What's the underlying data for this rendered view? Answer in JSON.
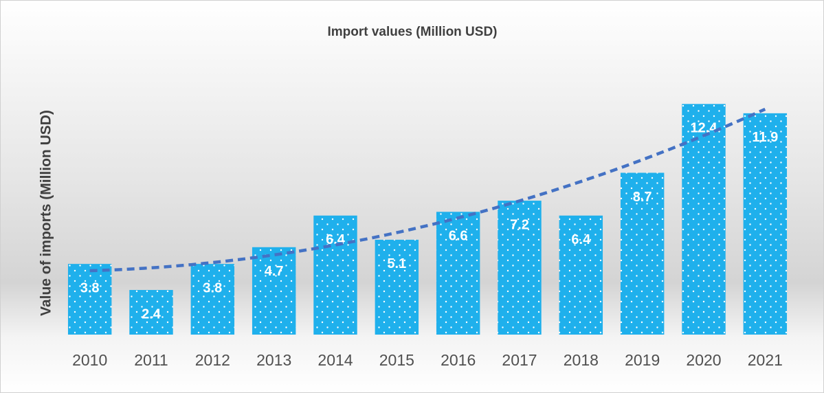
{
  "chart_data": {
    "type": "bar",
    "title": "Import values (Million USD)",
    "y_label": "Value of imports (Million USD)",
    "categories": [
      "2010",
      "2011",
      "2012",
      "2013",
      "2014",
      "2015",
      "2016",
      "2017",
      "2018",
      "2019",
      "2020",
      "2021"
    ],
    "values": [
      3.8,
      2.4,
      3.8,
      4.7,
      6.4,
      5.1,
      6.6,
      7.2,
      6.4,
      8.7,
      12.4,
      11.9
    ],
    "color": "#1fb0ec",
    "trendline": "polynomial",
    "trendline_color": "#4472c4",
    "ylim": [
      0,
      14
    ],
    "grid": false
  }
}
